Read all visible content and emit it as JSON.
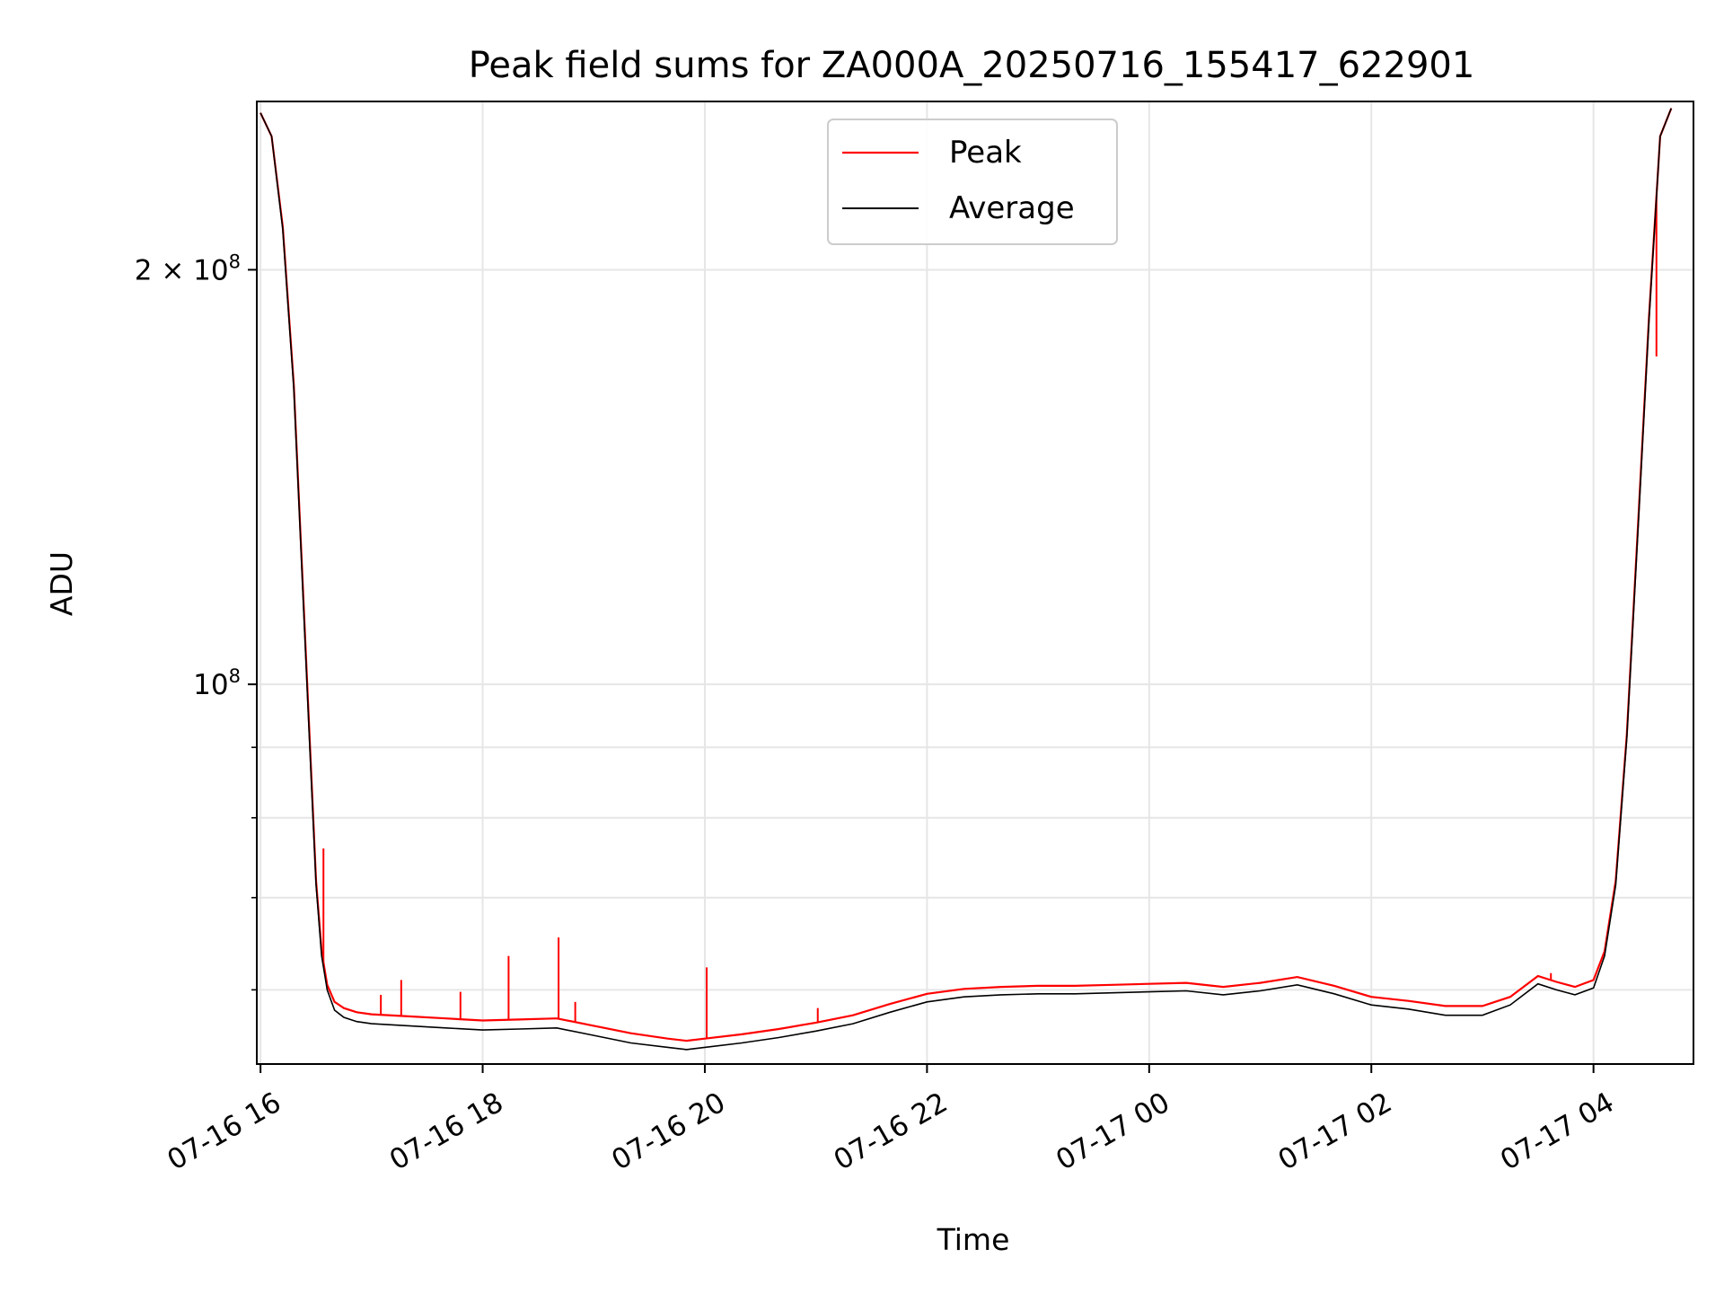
{
  "chart_data": {
    "type": "line",
    "title": "Peak field sums for ZA000A_20250716_155417_622901",
    "xlabel": "Time",
    "ylabel": "ADU",
    "y_scale": "log",
    "ylim": [
      53000000,
      265000000
    ],
    "xlim": [
      "07-16 15:58",
      "07-17 04:54"
    ],
    "grid": true,
    "legend_position": "top-center",
    "x_ticks": [
      "07-16 16",
      "07-16 18",
      "07-16 20",
      "07-16 22",
      "07-17 00",
      "07-17 02",
      "07-17 04"
    ],
    "x_tick_times": [
      "07-16 16:00",
      "07-16 18:00",
      "07-16 20:00",
      "07-16 22:00",
      "07-17 00:00",
      "07-17 02:00",
      "07-17 04:00"
    ],
    "y_major_ticks": [
      {
        "value": 100000000,
        "base": "10",
        "exp": "8",
        "prefix": ""
      },
      {
        "value": 200000000,
        "base": "10",
        "exp": "8",
        "prefix": "2 × "
      }
    ],
    "y_minor_ticks": [
      60000000,
      70000000,
      80000000,
      90000000
    ],
    "series": [
      {
        "name": "Peak",
        "color": "#ff0000",
        "x": [
          "07-16 16:00",
          "07-16 16:06",
          "07-16 16:12",
          "07-16 16:18",
          "07-16 16:22",
          "07-16 16:26",
          "07-16 16:30",
          "07-16 16:33",
          "07-16 16:36",
          "07-16 16:40",
          "07-16 16:45",
          "07-16 16:52",
          "07-16 17:00",
          "07-16 17:20",
          "07-16 17:40",
          "07-16 18:00",
          "07-16 18:20",
          "07-16 18:40",
          "07-16 19:00",
          "07-16 19:20",
          "07-16 19:40",
          "07-16 19:50",
          "07-16 20:00",
          "07-16 20:20",
          "07-16 20:40",
          "07-16 21:00",
          "07-16 21:20",
          "07-16 21:40",
          "07-16 22:00",
          "07-16 22:20",
          "07-16 22:40",
          "07-16 23:00",
          "07-16 23:20",
          "07-16 23:40",
          "07-17 00:00",
          "07-17 00:20",
          "07-17 00:40",
          "07-17 01:00",
          "07-17 01:20",
          "07-17 01:40",
          "07-17 02:00",
          "07-17 02:20",
          "07-17 02:40",
          "07-17 03:00",
          "07-17 03:15",
          "07-17 03:30",
          "07-17 03:40",
          "07-17 03:50",
          "07-17 04:00",
          "07-17 04:06",
          "07-17 04:12",
          "07-17 04:18",
          "07-17 04:24",
          "07-17 04:30",
          "07-17 04:36",
          "07-17 04:42"
        ],
        "values": [
          260000000,
          250000000,
          215000000,
          165000000,
          125000000,
          95000000,
          72000000,
          64000000,
          60500000,
          58800000,
          58200000,
          57800000,
          57600000,
          57400000,
          57200000,
          57000000,
          57100000,
          57200000,
          56500000,
          55800000,
          55300000,
          55100000,
          55300000,
          55700000,
          56200000,
          56800000,
          57500000,
          58600000,
          59600000,
          60100000,
          60300000,
          60400000,
          60400000,
          60500000,
          60600000,
          60700000,
          60300000,
          60700000,
          61300000,
          60400000,
          59300000,
          58900000,
          58400000,
          58400000,
          59300000,
          61400000,
          60800000,
          60300000,
          61000000,
          64000000,
          72000000,
          92000000,
          130000000,
          185000000,
          250000000,
          262000000
        ]
      },
      {
        "name": "Average",
        "color": "#000000",
        "x": [
          "07-16 16:00",
          "07-16 16:06",
          "07-16 16:12",
          "07-16 16:18",
          "07-16 16:22",
          "07-16 16:26",
          "07-16 16:30",
          "07-16 16:33",
          "07-16 16:36",
          "07-16 16:40",
          "07-16 16:45",
          "07-16 16:52",
          "07-16 17:00",
          "07-16 17:20",
          "07-16 17:40",
          "07-16 18:00",
          "07-16 18:20",
          "07-16 18:40",
          "07-16 19:00",
          "07-16 19:20",
          "07-16 19:40",
          "07-16 19:50",
          "07-16 20:00",
          "07-16 20:20",
          "07-16 20:40",
          "07-16 21:00",
          "07-16 21:20",
          "07-16 21:40",
          "07-16 22:00",
          "07-16 22:20",
          "07-16 22:40",
          "07-16 23:00",
          "07-16 23:20",
          "07-16 23:40",
          "07-17 00:00",
          "07-17 00:20",
          "07-17 00:40",
          "07-17 01:00",
          "07-17 01:20",
          "07-17 01:40",
          "07-17 02:00",
          "07-17 02:20",
          "07-17 02:40",
          "07-17 03:00",
          "07-17 03:15",
          "07-17 03:30",
          "07-17 03:40",
          "07-17 03:50",
          "07-17 04:00",
          "07-17 04:06",
          "07-17 04:12",
          "07-17 04:18",
          "07-17 04:24",
          "07-17 04:30",
          "07-17 04:36",
          "07-17 04:42"
        ],
        "values": [
          260000000,
          250000000,
          214000000,
          164000000,
          124000000,
          94000000,
          71500000,
          63500000,
          60000000,
          58000000,
          57300000,
          56900000,
          56700000,
          56500000,
          56300000,
          56100000,
          56200000,
          56300000,
          55600000,
          54900000,
          54500000,
          54300000,
          54500000,
          54900000,
          55400000,
          56000000,
          56700000,
          57800000,
          58800000,
          59300000,
          59500000,
          59600000,
          59600000,
          59700000,
          59800000,
          59900000,
          59500000,
          59900000,
          60500000,
          59600000,
          58500000,
          58100000,
          57500000,
          57500000,
          58500000,
          60600000,
          60000000,
          59500000,
          60200000,
          63500000,
          71500000,
          91500000,
          129000000,
          184000000,
          250000000,
          262000000
        ]
      }
    ],
    "peak_spikes": [
      {
        "x": "07-16 16:23",
        "value": 117000000
      },
      {
        "x": "07-16 16:34",
        "value": 76000000
      },
      {
        "x": "07-16 17:05",
        "value": 59500000
      },
      {
        "x": "07-16 17:16",
        "value": 61000000
      },
      {
        "x": "07-16 17:48",
        "value": 59800000
      },
      {
        "x": "07-16 18:14",
        "value": 63500000
      },
      {
        "x": "07-16 18:41",
        "value": 65500000
      },
      {
        "x": "07-16 18:50",
        "value": 58800000
      },
      {
        "x": "07-16 20:01",
        "value": 62300000
      },
      {
        "x": "07-16 21:01",
        "value": 58200000
      },
      {
        "x": "07-17 03:37",
        "value": 61700000
      },
      {
        "x": "07-17 04:34",
        "value": 173000000
      }
    ]
  }
}
